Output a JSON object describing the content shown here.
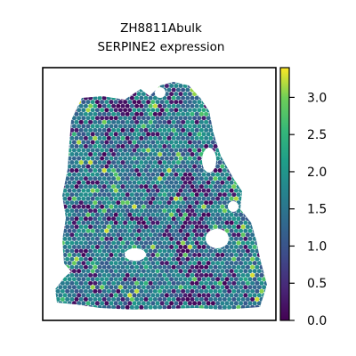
{
  "chart_data": {
    "type": "heatmap",
    "title": "ZH8811Abulk",
    "subtitle": "SERPINE2 expression",
    "xlabel": "",
    "ylabel": "",
    "colorbar": {
      "colormap": "viridis",
      "range": [
        0.0,
        3.4
      ],
      "ticks": [
        0.0,
        0.5,
        1.0,
        1.5,
        2.0,
        2.5,
        3.0
      ],
      "tick_labels": [
        "0.0",
        "0.5",
        "1.0",
        "1.5",
        "2.0",
        "2.5",
        "3.0"
      ],
      "colors": [
        "#440154",
        "#3b528b",
        "#21918c",
        "#5ec962",
        "#fde725"
      ]
    },
    "grid": false,
    "legend": "colorbar-right",
    "description_of_values": "spatial spot expression values, typical range 1.0-2.0 with scattered zeros and highs up to ~3.3"
  }
}
